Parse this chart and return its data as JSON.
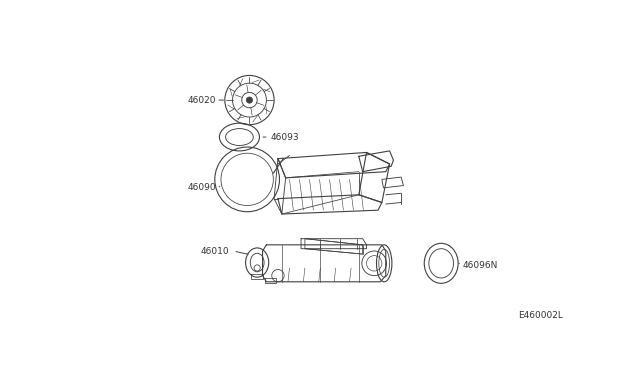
{
  "bg_color": "#ffffff",
  "line_color": "#404040",
  "text_color": "#333333",
  "fig_width": 6.4,
  "fig_height": 3.72,
  "dpi": 100,
  "watermark": "E460002L",
  "label_fontsize": 6.5,
  "lw": 0.8
}
